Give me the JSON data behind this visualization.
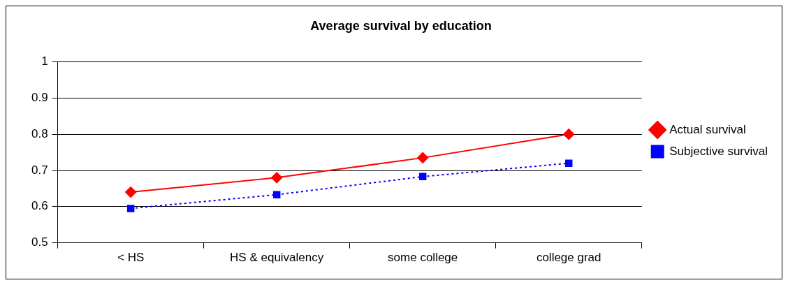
{
  "chart_data": {
    "type": "line",
    "title": "Average survival by education",
    "categories": [
      "< HS",
      "HS & equivalency",
      "some college",
      "college grad"
    ],
    "series": [
      {
        "name": "Actual survival",
        "color": "#ff0000",
        "values": [
          0.64,
          0.68,
          0.735,
          0.8
        ],
        "marker": "diamond",
        "line_style": "solid"
      },
      {
        "name": "Subjective survival",
        "color": "#0000ff",
        "values": [
          0.595,
          0.633,
          0.683,
          0.72
        ],
        "marker": "square",
        "line_style": "dotted"
      }
    ],
    "ylim": [
      0.5,
      1
    ],
    "yticks": [
      0.5,
      0.6,
      0.7,
      0.8,
      0.9,
      1
    ],
    "grid": "y",
    "legend": "right"
  }
}
